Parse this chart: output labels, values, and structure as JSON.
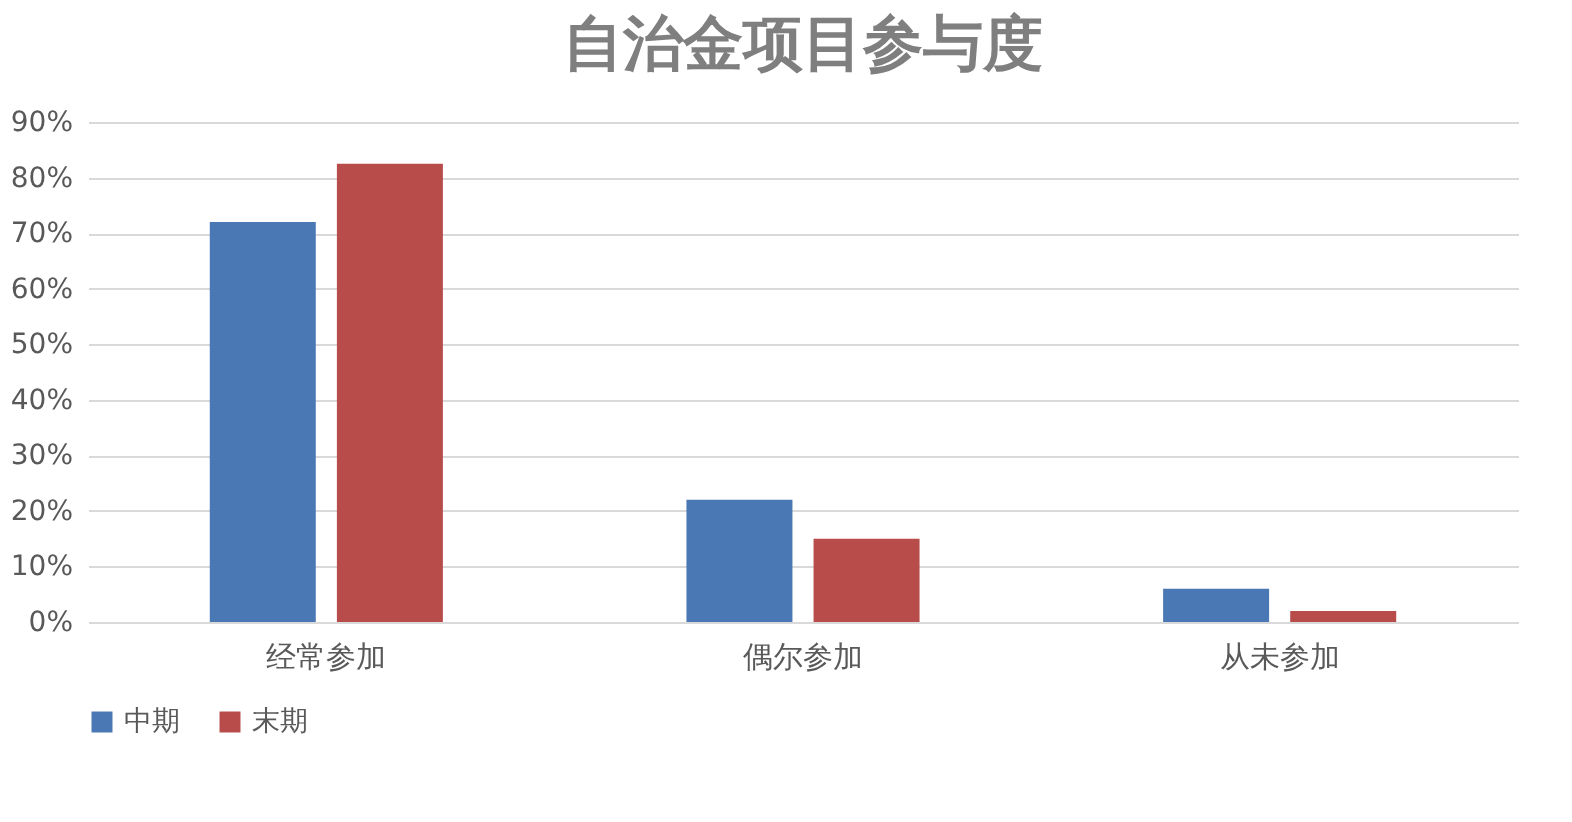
{
  "chart_data": {
    "type": "bar",
    "title": "自治金项目参与度",
    "categories": [
      "经常参加",
      "偶尔参加",
      "从未参加"
    ],
    "series": [
      {
        "name": "中期",
        "color": "#4a78b5",
        "values": [
          72,
          22,
          6
        ]
      },
      {
        "name": "末期",
        "color": "#b84c4a",
        "values": [
          82.5,
          15,
          2
        ]
      }
    ],
    "ylim": [
      0,
      90
    ],
    "yticks": [
      {
        "value": 0,
        "label": "0%"
      },
      {
        "value": 10,
        "label": "10%"
      },
      {
        "value": 20,
        "label": "20%"
      },
      {
        "value": 30,
        "label": "30%"
      },
      {
        "value": 40,
        "label": "40%"
      },
      {
        "value": 50,
        "label": "50%"
      },
      {
        "value": 60,
        "label": "60%"
      },
      {
        "value": 70,
        "label": "70%"
      },
      {
        "value": 80,
        "label": "80%"
      },
      {
        "value": 90,
        "label": "90%"
      }
    ],
    "grid": "y",
    "legend": "bottom"
  }
}
